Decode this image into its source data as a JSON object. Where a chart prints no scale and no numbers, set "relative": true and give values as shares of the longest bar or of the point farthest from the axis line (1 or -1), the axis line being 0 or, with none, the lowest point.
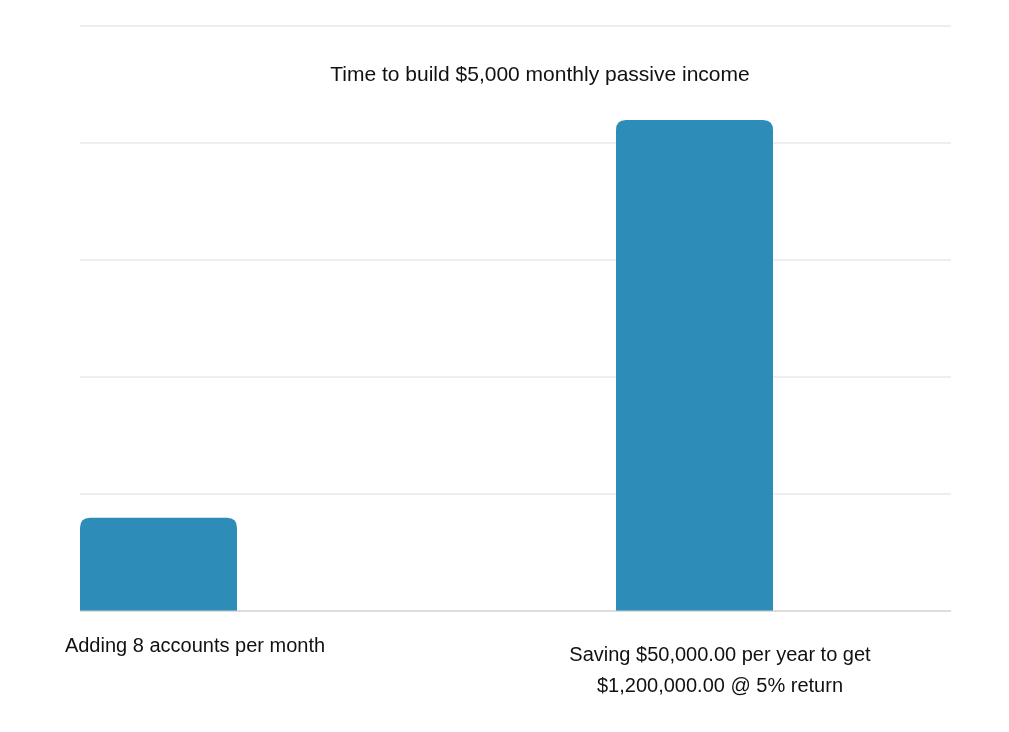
{
  "chart_data": {
    "type": "bar",
    "title": "Time to build $5,000 monthly passive income",
    "categories": [
      "Adding 8 accounts per month",
      "Saving $50,000.00 per year to get $1,200,000.00 @ 5% return"
    ],
    "values": [
      0.19,
      1
    ],
    "color": "#2e8cb9",
    "relative": true,
    "grid": true
  }
}
